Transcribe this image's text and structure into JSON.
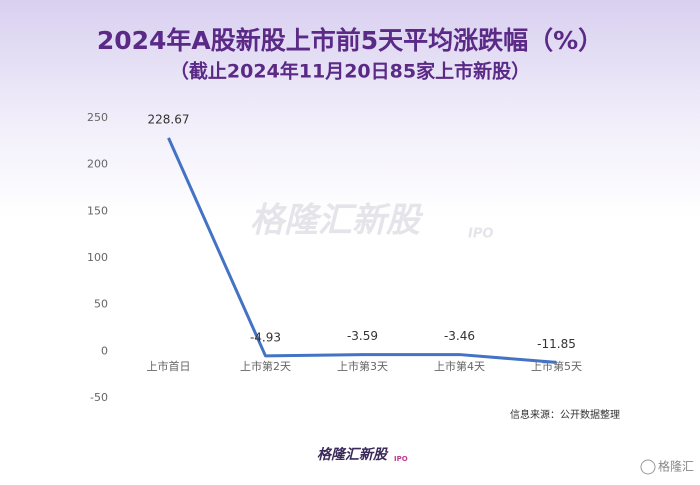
{
  "chart_data": {
    "type": "line",
    "title": "2024年A股新股上市前5天平均涨跌幅（%）",
    "subtitle": "（截止2024年11月20日85家上市新股）",
    "categories": [
      "上市首日",
      "上市第2天",
      "上市第3天",
      "上市第4天",
      "上市第5天"
    ],
    "values": [
      228.67,
      -4.93,
      -3.59,
      -3.46,
      -11.85
    ],
    "color": "#4472c4",
    "ylim": [
      -50,
      250
    ],
    "yticks": [
      -50,
      0,
      50,
      100,
      150,
      200,
      250
    ],
    "grid": false,
    "source": "信息来源：公开数据整理",
    "watermark": "格隆汇新股",
    "watermark_tag": "IPO",
    "footer_logo": "格隆汇新股",
    "footer_logo_tag": "IPO",
    "footer_brand": "格隆汇"
  }
}
